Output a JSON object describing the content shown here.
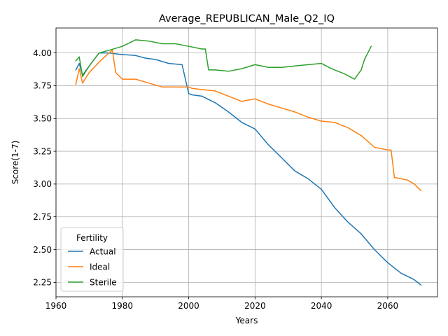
{
  "chart_data": {
    "type": "line",
    "title": "Average_REPUBLICAN_Male_Q2_IQ",
    "xlabel": "Years",
    "ylabel": "Score(1-7)",
    "xlim": [
      1960,
      2075
    ],
    "ylim": [
      2.14,
      4.19
    ],
    "xticks": [
      1960,
      1980,
      2000,
      2020,
      2040,
      2060
    ],
    "yticks": [
      2.25,
      2.5,
      2.75,
      3.0,
      3.25,
      3.5,
      3.75,
      4.0
    ],
    "xtick_labels": [
      "1960",
      "1980",
      "2000",
      "2020",
      "2040",
      "2060"
    ],
    "ytick_labels": [
      "2.25",
      "2.50",
      "2.75",
      "3.00",
      "3.25",
      "3.50",
      "3.75",
      "4.00"
    ],
    "grid": true,
    "legend": {
      "title": "Fertility",
      "placement": "lower-left"
    },
    "series": [
      {
        "name": "Actual",
        "color": "#1f77b4",
        "x": [
          1966,
          1967,
          1968,
          1970,
          1973,
          1976,
          1979,
          1984,
          1987,
          1990,
          1994,
          1998,
          2000,
          2001,
          2004,
          2008,
          2012,
          2016,
          2020,
          2024,
          2028,
          2032,
          2036,
          2040,
          2044,
          2048,
          2052,
          2056,
          2060,
          2064,
          2068,
          2070
        ],
        "y": [
          3.87,
          3.92,
          3.83,
          3.9,
          4.0,
          4.0,
          3.99,
          3.98,
          3.96,
          3.95,
          3.92,
          3.91,
          3.69,
          3.68,
          3.67,
          3.62,
          3.55,
          3.47,
          3.42,
          3.3,
          3.2,
          3.1,
          3.04,
          2.96,
          2.82,
          2.71,
          2.62,
          2.5,
          2.4,
          2.32,
          2.27,
          2.23
        ]
      },
      {
        "name": "Ideal",
        "color": "#ff7f0e",
        "x": [
          1966,
          1967,
          1968,
          1970,
          1973,
          1976,
          1977,
          1978,
          1980,
          1984,
          1988,
          1992,
          1996,
          2000,
          2001,
          2004,
          2008,
          2012,
          2016,
          2020,
          2024,
          2028,
          2032,
          2036,
          2040,
          2044,
          2048,
          2052,
          2056,
          2060,
          2061,
          2062,
          2064,
          2066,
          2068,
          2070
        ],
        "y": [
          3.76,
          3.88,
          3.77,
          3.85,
          3.93,
          4.0,
          4.02,
          3.85,
          3.8,
          3.8,
          3.77,
          3.74,
          3.74,
          3.74,
          3.73,
          3.72,
          3.71,
          3.67,
          3.63,
          3.65,
          3.61,
          3.58,
          3.55,
          3.51,
          3.48,
          3.47,
          3.43,
          3.37,
          3.28,
          3.26,
          3.26,
          3.05,
          3.04,
          3.03,
          3.0,
          2.95
        ]
      },
      {
        "name": "Sterile",
        "color": "#2ca02c",
        "x": [
          1966,
          1967,
          1968,
          1970,
          1973,
          1976,
          1980,
          1984,
          1988,
          1992,
          1996,
          2000,
          2004,
          2005,
          2006,
          2008,
          2012,
          2016,
          2020,
          2024,
          2028,
          2032,
          2036,
          2040,
          2043,
          2047,
          2050,
          2052,
          2053,
          2055
        ],
        "y": [
          3.94,
          3.97,
          3.82,
          3.9,
          4.0,
          4.02,
          4.05,
          4.1,
          4.09,
          4.07,
          4.07,
          4.05,
          4.03,
          4.03,
          3.87,
          3.87,
          3.86,
          3.88,
          3.91,
          3.89,
          3.89,
          3.9,
          3.91,
          3.92,
          3.88,
          3.84,
          3.8,
          3.87,
          3.95,
          4.05
        ]
      }
    ]
  }
}
